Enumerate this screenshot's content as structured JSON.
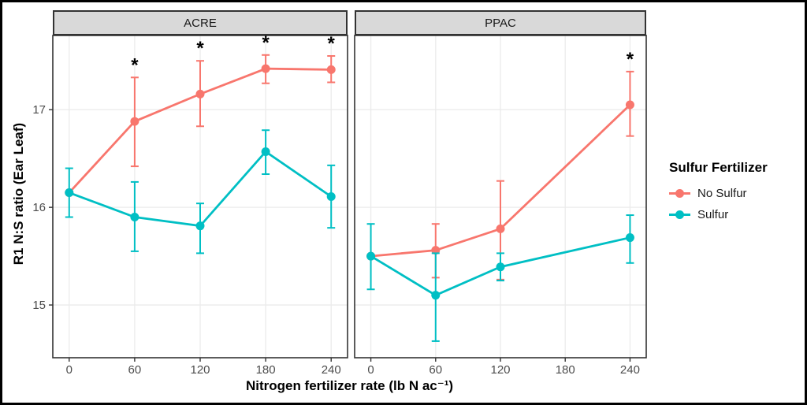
{
  "palette": {
    "no_sulfur": "#F8766D",
    "sulfur": "#00BFC4",
    "strip_background": "#D9D9D9",
    "strip_border": "#333333",
    "panel_border": "#333333",
    "gridline": "#EBEBEB",
    "tick_label": "#4D4D4D",
    "text": "#000000",
    "outer_border": "#000000"
  },
  "chart_data": {
    "type": "line",
    "title": "",
    "xlabel": "Nitrogen fertilizer rate (lb N ac⁻¹)",
    "ylabel": "R1 N:S ratio (Ear Leaf)",
    "x_ticks": [
      0,
      60,
      120,
      180,
      240
    ],
    "y_ticks": [
      15,
      16,
      17
    ],
    "xlim": [
      -15,
      255
    ],
    "ylim": [
      14.46,
      17.76
    ],
    "grid": "major-only",
    "legend": {
      "title": "Sulfur Fertilizer",
      "position": "right",
      "items": [
        {
          "label": "No Sulfur",
          "color": "#F8766D"
        },
        {
          "label": "Sulfur",
          "color": "#00BFC4"
        }
      ]
    },
    "annotations": {
      "significance_marker": "*"
    },
    "facets": [
      {
        "label": "ACRE",
        "series": [
          {
            "name": "No Sulfur",
            "color": "#F8766D",
            "points": [
              {
                "x": 0,
                "y": 16.15,
                "lo": null,
                "hi": null
              },
              {
                "x": 60,
                "y": 16.88,
                "lo": 16.42,
                "hi": 17.33
              },
              {
                "x": 120,
                "y": 17.16,
                "lo": 16.83,
                "hi": 17.5
              },
              {
                "x": 180,
                "y": 17.42,
                "lo": 17.27,
                "hi": 17.56
              },
              {
                "x": 240,
                "y": 17.41,
                "lo": 17.28,
                "hi": 17.55
              }
            ]
          },
          {
            "name": "Sulfur",
            "color": "#00BFC4",
            "points": [
              {
                "x": 0,
                "y": 16.15,
                "lo": 15.9,
                "hi": 16.4
              },
              {
                "x": 60,
                "y": 15.9,
                "lo": 15.55,
                "hi": 16.26
              },
              {
                "x": 120,
                "y": 15.81,
                "lo": 15.53,
                "hi": 16.04
              },
              {
                "x": 180,
                "y": 16.57,
                "lo": 16.34,
                "hi": 16.79
              },
              {
                "x": 240,
                "y": 16.11,
                "lo": 15.79,
                "hi": 16.43
              }
            ]
          }
        ],
        "significant_x": [
          60,
          120,
          180,
          240
        ]
      },
      {
        "label": "PPAC",
        "series": [
          {
            "name": "No Sulfur",
            "color": "#F8766D",
            "points": [
              {
                "x": 0,
                "y": 15.5,
                "lo": null,
                "hi": null
              },
              {
                "x": 60,
                "y": 15.56,
                "lo": 15.28,
                "hi": 15.83
              },
              {
                "x": 120,
                "y": 15.78,
                "lo": 15.26,
                "hi": 16.27
              },
              {
                "x": 240,
                "y": 17.05,
                "lo": 16.73,
                "hi": 17.39
              }
            ]
          },
          {
            "name": "Sulfur",
            "color": "#00BFC4",
            "points": [
              {
                "x": 0,
                "y": 15.5,
                "lo": 15.16,
                "hi": 15.83
              },
              {
                "x": 60,
                "y": 15.1,
                "lo": 14.63,
                "hi": 15.53
              },
              {
                "x": 120,
                "y": 15.39,
                "lo": 15.25,
                "hi": 15.53
              },
              {
                "x": 240,
                "y": 15.69,
                "lo": 15.43,
                "hi": 15.92
              }
            ]
          }
        ],
        "significant_x": [
          240
        ]
      }
    ]
  }
}
